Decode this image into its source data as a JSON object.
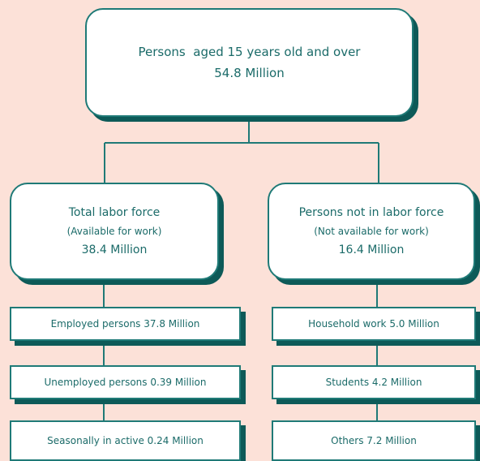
{
  "top": {
    "label": "Persons  aged 15 years old and over",
    "value": "54.8 Million"
  },
  "branches": [
    {
      "title": "Total labor force",
      "subtitle": "(Available for work)",
      "value": "38.4 Million",
      "items": [
        "Employed persons 37.8 Million",
        "Unemployed persons 0.39 Million",
        "Seasonally in active 0.24 Million"
      ]
    },
    {
      "title": "Persons not in labor force",
      "subtitle": "(Not available for work)",
      "value": "16.4 Million",
      "items": [
        "Household work 5.0 Million",
        "Students 4.2 Million",
        "Others 7.2 Million"
      ]
    }
  ]
}
